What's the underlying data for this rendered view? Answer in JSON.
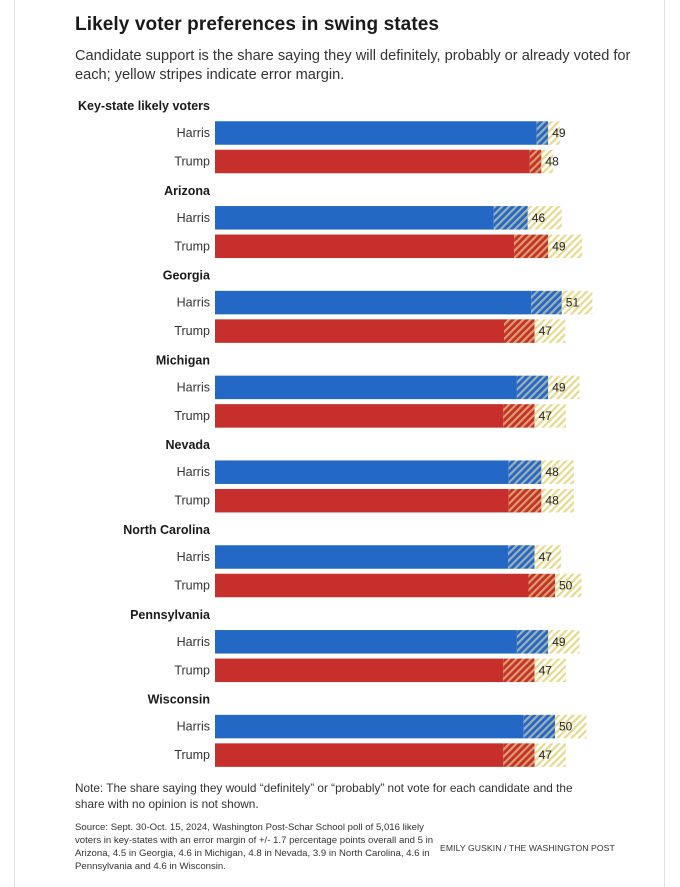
{
  "header": {
    "title": "Likely voter preferences in swing states",
    "subtitle": "Candidate support is the share saying they will definitely, probably or already voted for each; yellow stripes indicate error margin."
  },
  "colors": {
    "harris": "#2368c4",
    "trump": "#c62f2b",
    "margin_stripe": "#e8d98a"
  },
  "chart_data": {
    "type": "bar",
    "orientation": "horizontal",
    "xlim": [
      0,
      55
    ],
    "grid": false,
    "legend": "none",
    "groups": [
      {
        "name": "Key-state likely voters",
        "margin": 1.7,
        "rows": [
          {
            "candidate": "Harris",
            "value": 49
          },
          {
            "candidate": "Trump",
            "value": 48
          }
        ]
      },
      {
        "name": "Arizona",
        "margin": 5,
        "rows": [
          {
            "candidate": "Harris",
            "value": 46
          },
          {
            "candidate": "Trump",
            "value": 49
          }
        ]
      },
      {
        "name": "Georgia",
        "margin": 4.5,
        "rows": [
          {
            "candidate": "Harris",
            "value": 51
          },
          {
            "candidate": "Trump",
            "value": 47
          }
        ]
      },
      {
        "name": "Michigan",
        "margin": 4.6,
        "rows": [
          {
            "candidate": "Harris",
            "value": 49
          },
          {
            "candidate": "Trump",
            "value": 47
          }
        ]
      },
      {
        "name": "Nevada",
        "margin": 4.8,
        "rows": [
          {
            "candidate": "Harris",
            "value": 48
          },
          {
            "candidate": "Trump",
            "value": 48
          }
        ]
      },
      {
        "name": "North Carolina",
        "margin": 3.9,
        "rows": [
          {
            "candidate": "Harris",
            "value": 47
          },
          {
            "candidate": "Trump",
            "value": 50
          }
        ]
      },
      {
        "name": "Pennsylvania",
        "margin": 4.6,
        "rows": [
          {
            "candidate": "Harris",
            "value": 49
          },
          {
            "candidate": "Trump",
            "value": 47
          }
        ]
      },
      {
        "name": "Wisconsin",
        "margin": 4.6,
        "rows": [
          {
            "candidate": "Harris",
            "value": 50
          },
          {
            "candidate": "Trump",
            "value": 47
          }
        ]
      }
    ]
  },
  "footer": {
    "note": "Note: The share saying they would “definitely” or “probably” not vote for each candidate and the share with no opinion is not shown.",
    "source": "Source: Sept. 30-Oct. 15, 2024, Washington Post-Schar School poll of 5,016 likely voters in key-states with an error margin of +/- 1.7 percentage points overall and 5 in Arizona, 4.5 in Georgia, 4.6 in Michigan, 4.8 in Nevada, 3.9 in North Carolina, 4.6 in Pennsylvania and 4.6 in Wisconsin.",
    "credit": "EMILY GUSKIN / THE WASHINGTON POST"
  }
}
